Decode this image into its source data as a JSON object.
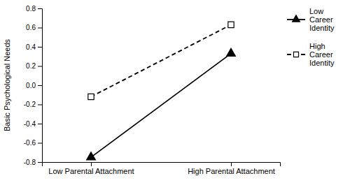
{
  "chart_data": {
    "type": "line",
    "categories": [
      "Low Parental Attachment",
      "High Parental Attachment"
    ],
    "series": [
      {
        "name": "Low\nCareer\nIdentity",
        "color": "black",
        "marker": "triangle",
        "line_style": "solid",
        "values": [
          -0.75,
          0.33
        ]
      },
      {
        "name": "High\nCareer\nIdentity",
        "color": "black",
        "marker": "open-square",
        "line_style": "dashed",
        "values": [
          -0.12,
          0.63
        ]
      }
    ],
    "ylabel": "Basic Psychological Needs",
    "ylim": [
      -0.8,
      0.8
    ],
    "yticks": [
      -0.8,
      -0.6,
      -0.4,
      -0.2,
      {
        "value": 0.0,
        "label": "0.0"
      },
      0.2,
      0.4,
      0.6,
      0.8
    ],
    "legend": "upper right",
    "grid": false
  }
}
